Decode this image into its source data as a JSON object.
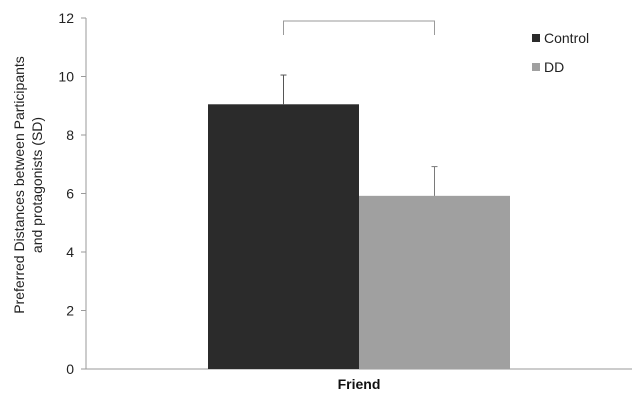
{
  "chart_data": {
    "type": "bar",
    "categories": [
      "Friend"
    ],
    "series": [
      {
        "name": "Control",
        "values": [
          9.05
        ],
        "error": [
          1.0
        ],
        "color": "#2b2b2b"
      },
      {
        "name": "DD",
        "values": [
          5.92
        ],
        "error": [
          1.0
        ],
        "color": "#a0a0a0"
      }
    ],
    "ylabel_lines": [
      "Preferred Distances between Participants",
      "and protagonists (SD)"
    ],
    "xlabel": "",
    "ylim": [
      0,
      12
    ],
    "yticks": [
      "0",
      "2",
      "4",
      "6",
      "8",
      "10",
      "12"
    ],
    "grid": false,
    "legend_position": "top-right",
    "significance_bracket": true
  }
}
